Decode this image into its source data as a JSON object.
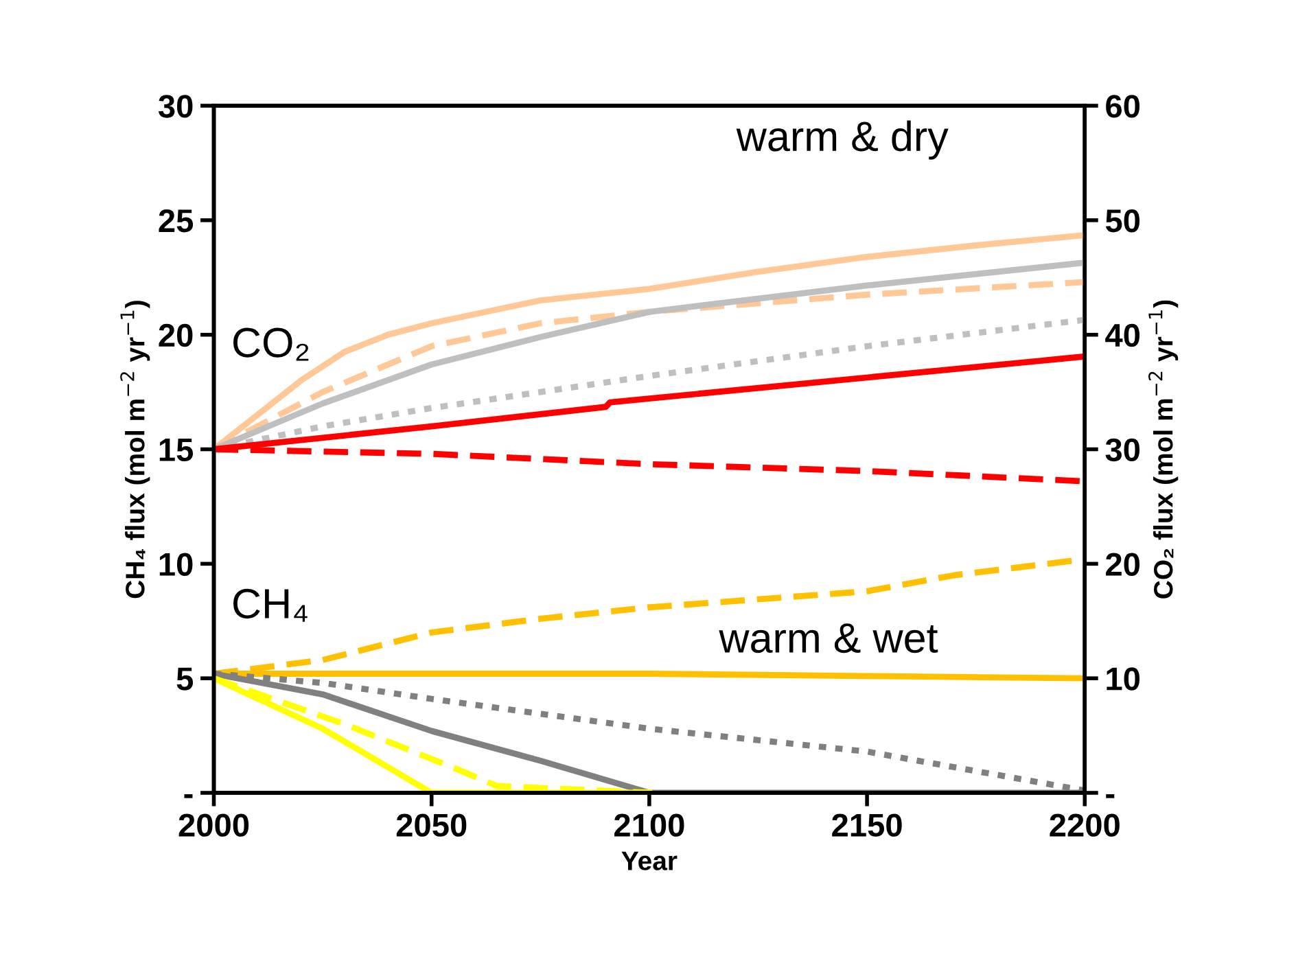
{
  "chart_data": {
    "type": "line",
    "xlabel": "Year",
    "ylabel": "CH₄ flux (mol m$^{−2}$ yr$^{−1}$)",
    "y2label": "CO₂ flux (mol m$^{−2}$ yr$^{−1}$)",
    "annotations": [
      "warm & dry",
      "CO₂",
      "CH₄",
      "warm & wet"
    ],
    "xlim": [
      2000,
      2200
    ],
    "xticks": [
      2000,
      2050,
      2100,
      2150,
      2200
    ],
    "ylim": [
      0,
      30
    ],
    "yticks": [
      {
        "value": 0,
        "label": "-"
      },
      5,
      10,
      15,
      20,
      25,
      30
    ],
    "y2lim": [
      0,
      60
    ],
    "y2ticks": [
      {
        "value": 0,
        "label": "-"
      },
      10,
      20,
      30,
      40,
      50,
      60
    ],
    "grid": false,
    "series": [
      {
        "axis": "y2",
        "color": "#ffc896",
        "line_style": "solid",
        "x": [
          2000,
          2010,
          2020,
          2030,
          2040,
          2050,
          2075,
          2100,
          2125,
          2150,
          2175,
          2200
        ],
        "values": [
          30,
          33,
          36,
          38.5,
          40,
          41,
          43,
          44,
          45.5,
          46.8,
          47.8,
          48.7
        ]
      },
      {
        "axis": "y2",
        "color": "#ffc896",
        "line_style": "dashed",
        "x": [
          2000,
          2025,
          2050,
          2075,
          2100,
          2150,
          2200
        ],
        "values": [
          30,
          35,
          39,
          41,
          42,
          43.5,
          44.6
        ]
      },
      {
        "axis": "y2",
        "color": "#bfbfbf",
        "line_style": "solid",
        "x": [
          2000,
          2025,
          2050,
          2075,
          2100,
          2150,
          2200
        ],
        "values": [
          30,
          34,
          37.4,
          39.8,
          42,
          44.3,
          46.3
        ]
      },
      {
        "axis": "y2",
        "color": "#bfbfbf",
        "line_style": "dotted",
        "x": [
          2000,
          2025,
          2050,
          2100,
          2150,
          2200
        ],
        "values": [
          30,
          32,
          33.6,
          36.4,
          39,
          41.3
        ]
      },
      {
        "axis": "y2",
        "color": "#ff0000",
        "line_style": "solid",
        "x": [
          2000,
          2050,
          2090,
          2091,
          2200
        ],
        "values": [
          30,
          32,
          33.7,
          34.1,
          38.1
        ]
      },
      {
        "axis": "y2",
        "color": "#ff0000",
        "line_style": "dashed",
        "x": [
          2000,
          2050,
          2100,
          2150,
          2200
        ],
        "values": [
          30,
          29.6,
          28.7,
          28.1,
          27.2
        ]
      },
      {
        "color": "#ffc000",
        "line_style": "dashed",
        "x": [
          2000,
          2025,
          2050,
          2075,
          2100,
          2150,
          2170,
          2200
        ],
        "values": [
          5.2,
          5.8,
          7.0,
          7.6,
          8.1,
          8.8,
          9.5,
          10.2
        ]
      },
      {
        "color": "#ffc000",
        "line_style": "solid",
        "x": [
          2000,
          2050,
          2100,
          2150,
          2200
        ],
        "values": [
          5.2,
          5.2,
          5.2,
          5.1,
          5.0
        ]
      },
      {
        "color": "#808080",
        "line_style": "solid",
        "x": [
          2000,
          2025,
          2050,
          2075,
          2100,
          2200
        ],
        "values": [
          5.2,
          4.3,
          2.7,
          1.4,
          0,
          0
        ]
      },
      {
        "color": "#808080",
        "line_style": "dotted",
        "x": [
          2000,
          2025,
          2050,
          2100,
          2150,
          2200
        ],
        "values": [
          5.2,
          4.8,
          4.1,
          2.8,
          1.8,
          0.1
        ]
      },
      {
        "color": "#ffff00",
        "line_style": "solid",
        "x": [
          2000,
          2025,
          2050,
          2100
        ],
        "values": [
          5,
          2.8,
          0,
          0
        ]
      },
      {
        "color": "#ffff00",
        "line_style": "dashed",
        "x": [
          2000,
          2030,
          2055,
          2065,
          2100
        ],
        "values": [
          5,
          3,
          1.1,
          0.3,
          0
        ]
      }
    ]
  }
}
